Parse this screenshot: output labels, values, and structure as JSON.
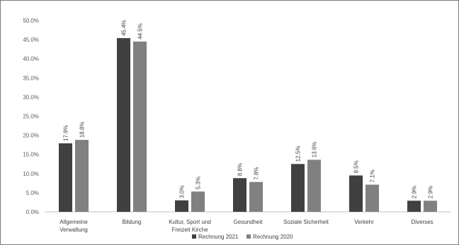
{
  "chart_data": {
    "type": "bar",
    "title": "",
    "xlabel": "",
    "ylabel": "",
    "ylim": [
      0,
      50
    ],
    "y_ticks": [
      "0.0%",
      "5.0%",
      "10.0%",
      "15.0%",
      "20.0%",
      "25.0%",
      "30.0%",
      "35.0%",
      "40.0%",
      "45.0%",
      "50.0%"
    ],
    "categories": [
      [
        "Allgemeine",
        "Verwaltung"
      ],
      [
        "Bildung"
      ],
      [
        "Kultur, Sport und",
        "Freizeit Kirche"
      ],
      [
        "Gesundheit"
      ],
      [
        "Soziale Sicherheit"
      ],
      [
        "Verkehr"
      ],
      [
        "Diverses"
      ]
    ],
    "series": [
      {
        "name": "Rechnung 2021",
        "color": "#404040",
        "values": [
          17.9,
          45.4,
          3.0,
          8.8,
          12.5,
          9.5,
          2.9
        ],
        "labels": [
          "17.9%",
          "45.4%",
          "3.0%",
          "8.8%",
          "12.5%",
          "9.5%",
          "2.9%"
        ]
      },
      {
        "name": "Rechnung 2020",
        "color": "#808080",
        "values": [
          18.8,
          44.5,
          5.3,
          7.8,
          13.6,
          7.1,
          2.9
        ],
        "labels": [
          "18.8%",
          "44.5%",
          "5.3%",
          "7.8%",
          "13.6%",
          "7.1%",
          "2.9%"
        ]
      }
    ],
    "grid": false,
    "legend_position": "bottom"
  }
}
